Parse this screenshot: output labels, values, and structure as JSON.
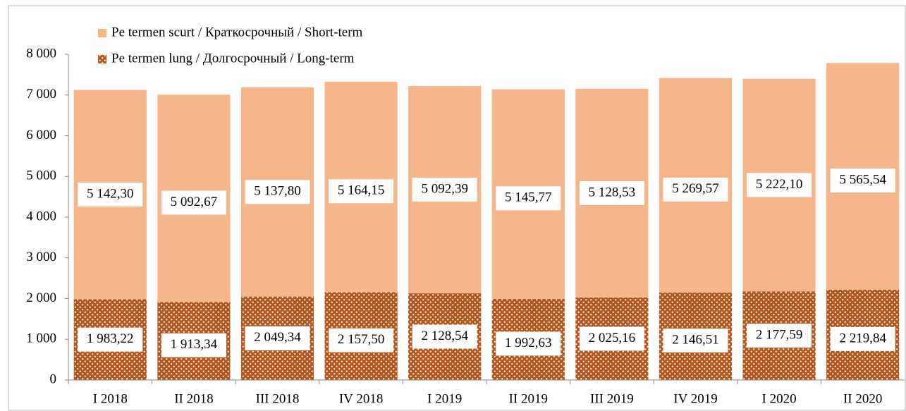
{
  "chart_data": {
    "type": "bar",
    "stacked": true,
    "categories": [
      "I 2018",
      "II 2018",
      "III 2018",
      "IV 2018",
      "I 2019",
      "II 2019",
      "III 2019",
      "IV 2019",
      "I 2020",
      "II 2020"
    ],
    "series": [
      {
        "name": "Pe termen lung / Долгосрочный / Long-term",
        "color": "#b5561e",
        "pattern": "dotted",
        "values": [
          1983.22,
          1913.34,
          2049.34,
          2157.5,
          2128.54,
          1992.63,
          2025.16,
          2146.51,
          2177.59,
          2219.84
        ],
        "value_labels": [
          "1 983,22",
          "1 913,34",
          "2 049,34",
          "2 157,50",
          "2 128,54",
          "1 992,63",
          "2 025,16",
          "2 146,51",
          "2 177,59",
          "2 219,84"
        ]
      },
      {
        "name": "Pe termen scurt / Краткосрочный / Short-term",
        "color": "#f4b68a",
        "values": [
          5142.3,
          5092.67,
          5137.8,
          5164.15,
          5092.39,
          5145.77,
          5128.53,
          5269.57,
          5222.1,
          5565.54
        ],
        "value_labels": [
          "5 142,30",
          "5 092,67",
          "5 137,80",
          "5 164,15",
          "5 092,39",
          "5 145,77",
          "5 128,53",
          "5 269,57",
          "5 222,10",
          "5 565,54"
        ]
      }
    ],
    "ylim": [
      0,
      8000
    ],
    "yticks": [
      0,
      {
        "value": 1000,
        "label": "1 000"
      },
      {
        "value": 2000,
        "label": "2 000"
      },
      {
        "value": 3000,
        "label": "3 000"
      },
      {
        "value": 4000,
        "label": "4 000"
      },
      {
        "value": 5000,
        "label": "5 000"
      },
      {
        "value": 6000,
        "label": "6 000"
      },
      {
        "value": 7000,
        "label": "7 000"
      },
      {
        "value": 8000,
        "label": "8 000"
      }
    ],
    "legend": "top-left"
  }
}
